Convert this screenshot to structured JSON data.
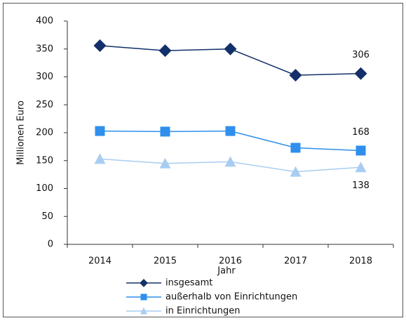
{
  "chart_data": {
    "type": "line",
    "x_label": "Jahr",
    "y_label": "Millionen Euro",
    "categories": [
      "2014",
      "2015",
      "2016",
      "2017",
      "2018"
    ],
    "series": [
      {
        "name": "insgesamt",
        "color": "#13306a",
        "marker": "diamond",
        "values": [
          356,
          347,
          350,
          303,
          306
        ]
      },
      {
        "name": "außerhalb von Einrichtungen",
        "color": "#2f8fec",
        "marker": "square",
        "values": [
          203,
          202,
          203,
          173,
          168
        ]
      },
      {
        "name": "in Einrichtungen",
        "color": "#a9cdf2",
        "marker": "triangle",
        "values": [
          153,
          145,
          148,
          130,
          138
        ]
      }
    ],
    "data_labels": "last",
    "ylim": [
      0,
      400
    ],
    "yticks": [
      0,
      50,
      100,
      150,
      200,
      250,
      300,
      350,
      400
    ],
    "grid": false,
    "legend": "bottom"
  }
}
